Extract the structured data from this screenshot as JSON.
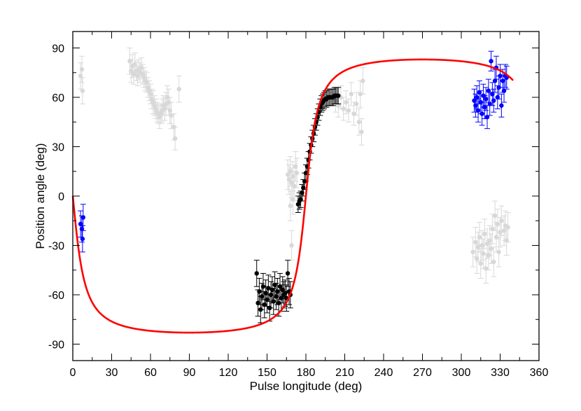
{
  "chart_data": {
    "type": "scatter",
    "title": "",
    "xlabel": "Pulse longitude (deg)",
    "ylabel": "Position angle (deg)",
    "xlim": [
      0,
      360
    ],
    "ylim": [
      -100,
      100
    ],
    "xticks": [
      0,
      30,
      60,
      90,
      120,
      150,
      180,
      210,
      240,
      270,
      300,
      330,
      360
    ],
    "yticks": [
      -90,
      -60,
      -30,
      0,
      30,
      60,
      90
    ],
    "grid": false,
    "legend": "none",
    "colors": {
      "main": "#000000",
      "early_late": "#0000ff",
      "other": "#d8d8d8",
      "fit": "#ff0000"
    },
    "series": [
      {
        "style": "error-dots",
        "color_key": "other",
        "points": [
          [
            6,
            73,
            8
          ],
          [
            7,
            77,
            8
          ],
          [
            7.5,
            64,
            8
          ],
          [
            44,
            82,
            8
          ],
          [
            45,
            76,
            7
          ],
          [
            46,
            79,
            7
          ],
          [
            47,
            74,
            6
          ],
          [
            48,
            80,
            7
          ],
          [
            49,
            76,
            6
          ],
          [
            50,
            73,
            6
          ],
          [
            51,
            77,
            6
          ],
          [
            52,
            75,
            6
          ],
          [
            53,
            78,
            6
          ],
          [
            54,
            74,
            6
          ],
          [
            55,
            72,
            6
          ],
          [
            56,
            70,
            6
          ],
          [
            57,
            69,
            6
          ],
          [
            58,
            66,
            6
          ],
          [
            59,
            64,
            6
          ],
          [
            60,
            62,
            6
          ],
          [
            61,
            59,
            6
          ],
          [
            62,
            57,
            7
          ],
          [
            63,
            55,
            6
          ],
          [
            64,
            53,
            6
          ],
          [
            65,
            51,
            6
          ],
          [
            66,
            50,
            6
          ],
          [
            67,
            48,
            7
          ],
          [
            68,
            50,
            6
          ],
          [
            69,
            52,
            7
          ],
          [
            70,
            55,
            6
          ],
          [
            71,
            53,
            7
          ],
          [
            72,
            56,
            7
          ],
          [
            73,
            60,
            7
          ],
          [
            74,
            57,
            8
          ],
          [
            75,
            52,
            8
          ],
          [
            76,
            49,
            8
          ],
          [
            78,
            42,
            8
          ],
          [
            79,
            35,
            7
          ],
          [
            82,
            65,
            8
          ],
          [
            166,
            13,
            9
          ],
          [
            167,
            10,
            9
          ],
          [
            168,
            15,
            9
          ],
          [
            169,
            8,
            9
          ],
          [
            170,
            12,
            9
          ],
          [
            171,
            6,
            9
          ],
          [
            172,
            18,
            9
          ],
          [
            173,
            14,
            9
          ],
          [
            168,
            -6,
            9
          ],
          [
            169,
            -30,
            9
          ],
          [
            170,
            -2,
            9
          ],
          [
            203,
            58,
            7
          ],
          [
            205,
            55,
            7
          ],
          [
            207,
            60,
            7
          ],
          [
            209,
            53,
            7
          ],
          [
            211,
            57,
            7
          ],
          [
            213,
            52,
            7
          ],
          [
            215,
            62,
            7
          ],
          [
            217,
            50,
            7
          ],
          [
            219,
            56,
            7
          ],
          [
            221,
            45,
            8
          ],
          [
            222,
            62,
            8
          ],
          [
            223,
            39,
            8
          ],
          [
            224,
            70,
            8
          ],
          [
            309,
            -34,
            9
          ],
          [
            311,
            -28,
            9
          ],
          [
            312,
            -38,
            9
          ],
          [
            313,
            -31,
            9
          ],
          [
            314,
            -25,
            9
          ],
          [
            315,
            -41,
            9
          ],
          [
            316,
            -30,
            9
          ],
          [
            317,
            -35,
            9
          ],
          [
            318,
            -23,
            9
          ],
          [
            319,
            -44,
            9
          ],
          [
            320,
            -29,
            9
          ],
          [
            321,
            -36,
            9
          ],
          [
            322,
            -27,
            9
          ],
          [
            323,
            -32,
            9
          ],
          [
            324,
            -20,
            9
          ],
          [
            325,
            -40,
            9
          ],
          [
            326,
            -12,
            9
          ],
          [
            327,
            -25,
            9
          ],
          [
            328,
            -17,
            9
          ],
          [
            329,
            -34,
            9
          ],
          [
            330,
            -22,
            9
          ],
          [
            331,
            -15,
            9
          ],
          [
            333,
            -21,
            9
          ],
          [
            334,
            -18,
            9
          ],
          [
            335,
            -27,
            9
          ],
          [
            336,
            -19,
            9
          ]
        ]
      },
      {
        "style": "error-dots",
        "color_key": "main",
        "points": [
          [
            142,
            -47,
            8
          ],
          [
            143,
            -65,
            8
          ],
          [
            144,
            -58,
            8
          ],
          [
            145,
            -69,
            8
          ],
          [
            146,
            -61,
            8
          ],
          [
            147,
            -55,
            8
          ],
          [
            148,
            -66,
            8
          ],
          [
            149,
            -59,
            8
          ],
          [
            150,
            -63,
            8
          ],
          [
            151,
            -56,
            8
          ],
          [
            152,
            -68,
            8
          ],
          [
            153,
            -60,
            8
          ],
          [
            154,
            -57,
            8
          ],
          [
            155,
            -64,
            8
          ],
          [
            156,
            -54,
            8
          ],
          [
            157,
            -61,
            8
          ],
          [
            158,
            -58,
            8
          ],
          [
            159,
            -65,
            8
          ],
          [
            160,
            -55,
            8
          ],
          [
            161,
            -62,
            8
          ],
          [
            162,
            -57,
            8
          ],
          [
            163,
            -60,
            8
          ],
          [
            164,
            -59,
            8
          ],
          [
            165,
            -62,
            8
          ],
          [
            166,
            -47,
            8
          ],
          [
            167,
            -58,
            8
          ],
          [
            168,
            -60,
            8
          ],
          [
            174,
            -5,
            5
          ],
          [
            175,
            -3,
            5
          ],
          [
            176,
            -2,
            5
          ],
          [
            177,
            2,
            5
          ],
          [
            178,
            5,
            5
          ],
          [
            179,
            9,
            5
          ],
          [
            180,
            14,
            5
          ],
          [
            181,
            18,
            5
          ],
          [
            182,
            22,
            5
          ],
          [
            183,
            27,
            5
          ],
          [
            184,
            31,
            5
          ],
          [
            185,
            35,
            5
          ],
          [
            186,
            38,
            5
          ],
          [
            187,
            42,
            5
          ],
          [
            188,
            45,
            5
          ],
          [
            189,
            48,
            5
          ],
          [
            190,
            51,
            5
          ],
          [
            191,
            54,
            5
          ],
          [
            192,
            56,
            5
          ],
          [
            193,
            57,
            5
          ],
          [
            194,
            58,
            5
          ],
          [
            195,
            59,
            5
          ],
          [
            196,
            59,
            5
          ],
          [
            197,
            60,
            5
          ],
          [
            198,
            60,
            5
          ],
          [
            199,
            60,
            5
          ],
          [
            200,
            60,
            5
          ],
          [
            201,
            60,
            5
          ],
          [
            202,
            61,
            5
          ],
          [
            203,
            61,
            5
          ],
          [
            204,
            61,
            5
          ],
          [
            205,
            61,
            5
          ]
        ]
      },
      {
        "style": "error-dots",
        "color_key": "early_late",
        "points": [
          [
            6,
            -17,
            8
          ],
          [
            7,
            -20,
            8
          ],
          [
            7.5,
            -26,
            8
          ],
          [
            8,
            -13,
            8
          ],
          [
            310,
            58,
            7
          ],
          [
            311,
            55,
            7
          ],
          [
            312,
            60,
            7
          ],
          [
            313,
            52,
            7
          ],
          [
            314,
            63,
            7
          ],
          [
            315,
            57,
            7
          ],
          [
            316,
            50,
            7
          ],
          [
            317,
            61,
            7
          ],
          [
            318,
            54,
            7
          ],
          [
            319,
            59,
            7
          ],
          [
            320,
            48,
            7
          ],
          [
            321,
            64,
            7
          ],
          [
            322,
            56,
            7
          ],
          [
            323,
            82,
            6
          ],
          [
            324,
            62,
            7
          ],
          [
            325,
            58,
            7
          ],
          [
            326,
            70,
            7
          ],
          [
            327,
            78,
            7
          ],
          [
            328,
            60,
            7
          ],
          [
            329,
            66,
            7
          ],
          [
            330,
            73,
            7
          ],
          [
            331,
            55,
            7
          ],
          [
            332,
            70,
            7
          ],
          [
            333,
            64,
            7
          ],
          [
            334,
            73,
            7
          ],
          [
            335,
            72,
            7
          ]
        ]
      },
      {
        "style": "curve",
        "color_key": "fit",
        "model": "rvm",
        "alpha": 83,
        "beta": 7,
        "phi0": 180,
        "psi0": 0,
        "x_range": [
          0,
          340
        ]
      }
    ]
  }
}
